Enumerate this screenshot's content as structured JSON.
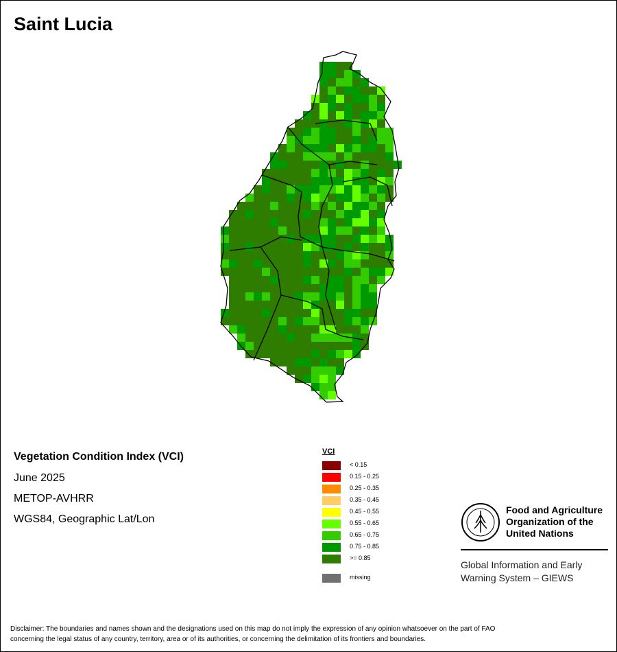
{
  "title": "Saint Lucia",
  "map_info": {
    "index_name": "Vegetation Condition Index (VCI)",
    "period": "June 2025",
    "sensor": "METOP-AVHRR",
    "projection": "WGS84, Geographic Lat/Lon"
  },
  "legend": {
    "title": "VCI",
    "items": [
      {
        "label": "< 0.15",
        "color": "#8b0000"
      },
      {
        "label": "0.15 - 0.25",
        "color": "#ff0000"
      },
      {
        "label": "0.25 - 0.35",
        "color": "#ff8c00"
      },
      {
        "label": "0.35 - 0.45",
        "color": "#ffcc66"
      },
      {
        "label": "0.45 - 0.55",
        "color": "#ffff00"
      },
      {
        "label": "0.55 - 0.65",
        "color": "#66ff00"
      },
      {
        "label": "0.65 - 0.75",
        "color": "#33cc00"
      },
      {
        "label": "0.75 - 0.85",
        "color": "#009900"
      },
      {
        "label": ">= 0.85",
        "color": "#2e7d00"
      }
    ],
    "missing": {
      "label": "missing",
      "color": "#707070"
    }
  },
  "logo": {
    "org_line1": "Food and Agriculture",
    "org_line2": "Organization of the",
    "org_line3": "United Nations",
    "giews_line1": "Global Information and Early",
    "giews_line2": "Warning System – GIEWS"
  },
  "disclaimer": {
    "line1": "Disclaimer: The boundaries and names shown and the designations used on this map do not imply the expression of any opinion whatsoever on the part of FAO",
    "line2": "concerning the legal status of any country, territory, area or of its authorities, or concerning the delimitation of its frontiers and boundaries."
  }
}
